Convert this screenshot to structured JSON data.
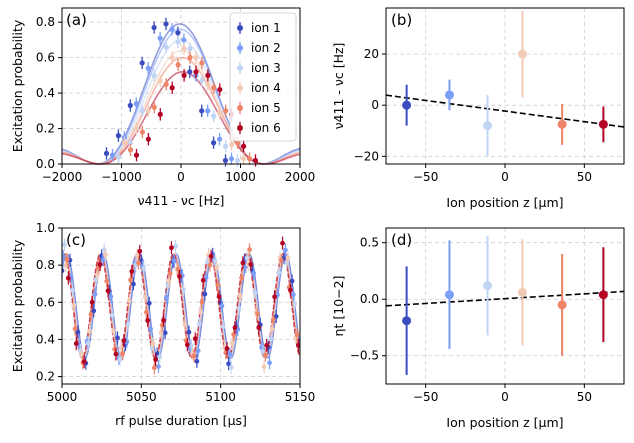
{
  "colors": {
    "ion1": "#3b4cc0",
    "ion2": "#7b9ff9",
    "ion3": "#c0d4f5",
    "ion4": "#f2cbb7",
    "ion5": "#ee8468",
    "ion6": "#b40426"
  },
  "chart_data": [
    {
      "panel": "a",
      "label": "(a)",
      "type": "scatter",
      "xlabel": "ν411 - νc [Hz]",
      "ylabel": "Excitation probability",
      "xlim": [
        -2000,
        2000
      ],
      "ylim": [
        0,
        0.88
      ],
      "xticks": [
        "−2000",
        "−1000",
        "0",
        "1000",
        "2000"
      ],
      "yticks": [
        "0.0",
        "0.2",
        "0.4",
        "0.6",
        "0.8"
      ],
      "legend": [
        "ion 1",
        "ion 2",
        "ion 3",
        "ion 4",
        "ion 5",
        "ion 6"
      ],
      "legend_position": "top-right",
      "x": [
        -1000,
        -800,
        -600,
        -400,
        -200,
        0,
        200,
        400,
        600,
        800,
        1000
      ],
      "series": [
        {
          "name": "ion 1",
          "amp": 0.79,
          "center": -20,
          "values": [
            0.06,
            0.16,
            0.33,
            0.57,
            0.77,
            0.79,
            0.74,
            0.52,
            0.3,
            0.12,
            0.02
          ]
        },
        {
          "name": "ion 2",
          "amp": 0.76,
          "center": -10,
          "values": [
            0.05,
            0.15,
            0.34,
            0.54,
            0.71,
            0.76,
            0.7,
            0.5,
            0.3,
            0.14,
            0.03
          ]
        },
        {
          "name": "ion 3",
          "amp": 0.7,
          "center": 0,
          "values": [
            0.04,
            0.12,
            0.3,
            0.5,
            0.66,
            0.69,
            0.65,
            0.47,
            0.27,
            0.1,
            0.02
          ]
        },
        {
          "name": "ion 4",
          "amp": 0.64,
          "center": 10,
          "values": [
            0.12,
            0.2,
            0.3,
            0.47,
            0.6,
            0.65,
            0.6,
            0.45,
            0.29,
            0.11,
            0.03
          ]
        },
        {
          "name": "ion 5",
          "amp": 0.6,
          "center": 20,
          "values": [
            0.08,
            0.18,
            0.32,
            0.45,
            0.56,
            0.6,
            0.57,
            0.43,
            0.3,
            0.12,
            0.03
          ]
        },
        {
          "name": "ion 6",
          "amp": 0.52,
          "center": 30,
          "values": [
            0.05,
            0.14,
            0.28,
            0.43,
            0.5,
            0.52,
            0.5,
            0.42,
            0.28,
            0.1,
            0.02
          ]
        }
      ]
    },
    {
      "panel": "b",
      "label": "(b)",
      "type": "scatter",
      "xlabel": "Ion position z [μm]",
      "ylabel": "ν411 - νc [Hz]",
      "xlim": [
        -75,
        75
      ],
      "ylim": [
        -23,
        38
      ],
      "xticks": [
        "−50",
        "0",
        "50"
      ],
      "xtick_values": [
        -50,
        0,
        50
      ],
      "yticks": [
        "−20",
        "0",
        "20"
      ],
      "ytick_values": [
        -20,
        0,
        20
      ],
      "points": [
        {
          "x": -62,
          "y": 0,
          "err": 8
        },
        {
          "x": -35,
          "y": 4,
          "err": 6
        },
        {
          "x": -11,
          "y": -8,
          "err": 12
        },
        {
          "x": 11,
          "y": 20,
          "err": 17
        },
        {
          "x": 36,
          "y": -7.5,
          "err": 8
        },
        {
          "x": 62,
          "y": -7.5,
          "err": 7
        }
      ],
      "fit": {
        "slope": -0.083,
        "intercept": -2.3
      }
    },
    {
      "panel": "c",
      "label": "(c)",
      "type": "line",
      "xlabel": "rf pulse duration [μs]",
      "ylabel": "Excitation probability",
      "xlim": [
        5000,
        5150
      ],
      "ylim": [
        0.16,
        1.0
      ],
      "xticks": [
        "5000",
        "5050",
        "5100",
        "5150"
      ],
      "xtick_values": [
        5000,
        5050,
        5100,
        5150
      ],
      "yticks": [
        "0.2",
        "0.4",
        "0.6",
        "0.8",
        "1.0"
      ],
      "ytick_values": [
        0.2,
        0.4,
        0.6,
        0.8,
        1.0
      ],
      "period_us": 23,
      "series": [
        {
          "name": "ion 1",
          "phase": 0.0
        },
        {
          "name": "ion 2",
          "phase": 0.4
        },
        {
          "name": "ion 3",
          "phase": 0.8
        },
        {
          "name": "ion 4",
          "phase": 1.2
        },
        {
          "name": "ion 5",
          "phase": 1.6
        },
        {
          "name": "ion 6",
          "phase": 2.0
        }
      ]
    },
    {
      "panel": "d",
      "label": "(d)",
      "type": "scatter",
      "xlabel": "Ion position z [μm]",
      "ylabel": "ηt [10−2]",
      "xlim": [
        -75,
        75
      ],
      "ylim": [
        -0.75,
        0.63
      ],
      "xticks": [
        "−50",
        "0",
        "50"
      ],
      "xtick_values": [
        -50,
        0,
        50
      ],
      "yticks": [
        "−0.5",
        "0.0",
        "0.5"
      ],
      "ytick_values": [
        -0.5,
        0,
        0.5
      ],
      "points": [
        {
          "x": -62,
          "y": -0.19,
          "err": 0.48
        },
        {
          "x": -35,
          "y": 0.04,
          "err": 0.48
        },
        {
          "x": -11,
          "y": 0.12,
          "err": 0.44
        },
        {
          "x": 11,
          "y": 0.06,
          "err": 0.47
        },
        {
          "x": 36,
          "y": -0.05,
          "err": 0.45
        },
        {
          "x": 62,
          "y": 0.04,
          "err": 0.42
        }
      ],
      "fit": {
        "slope": 0.00085,
        "intercept": 0.005
      }
    }
  ]
}
